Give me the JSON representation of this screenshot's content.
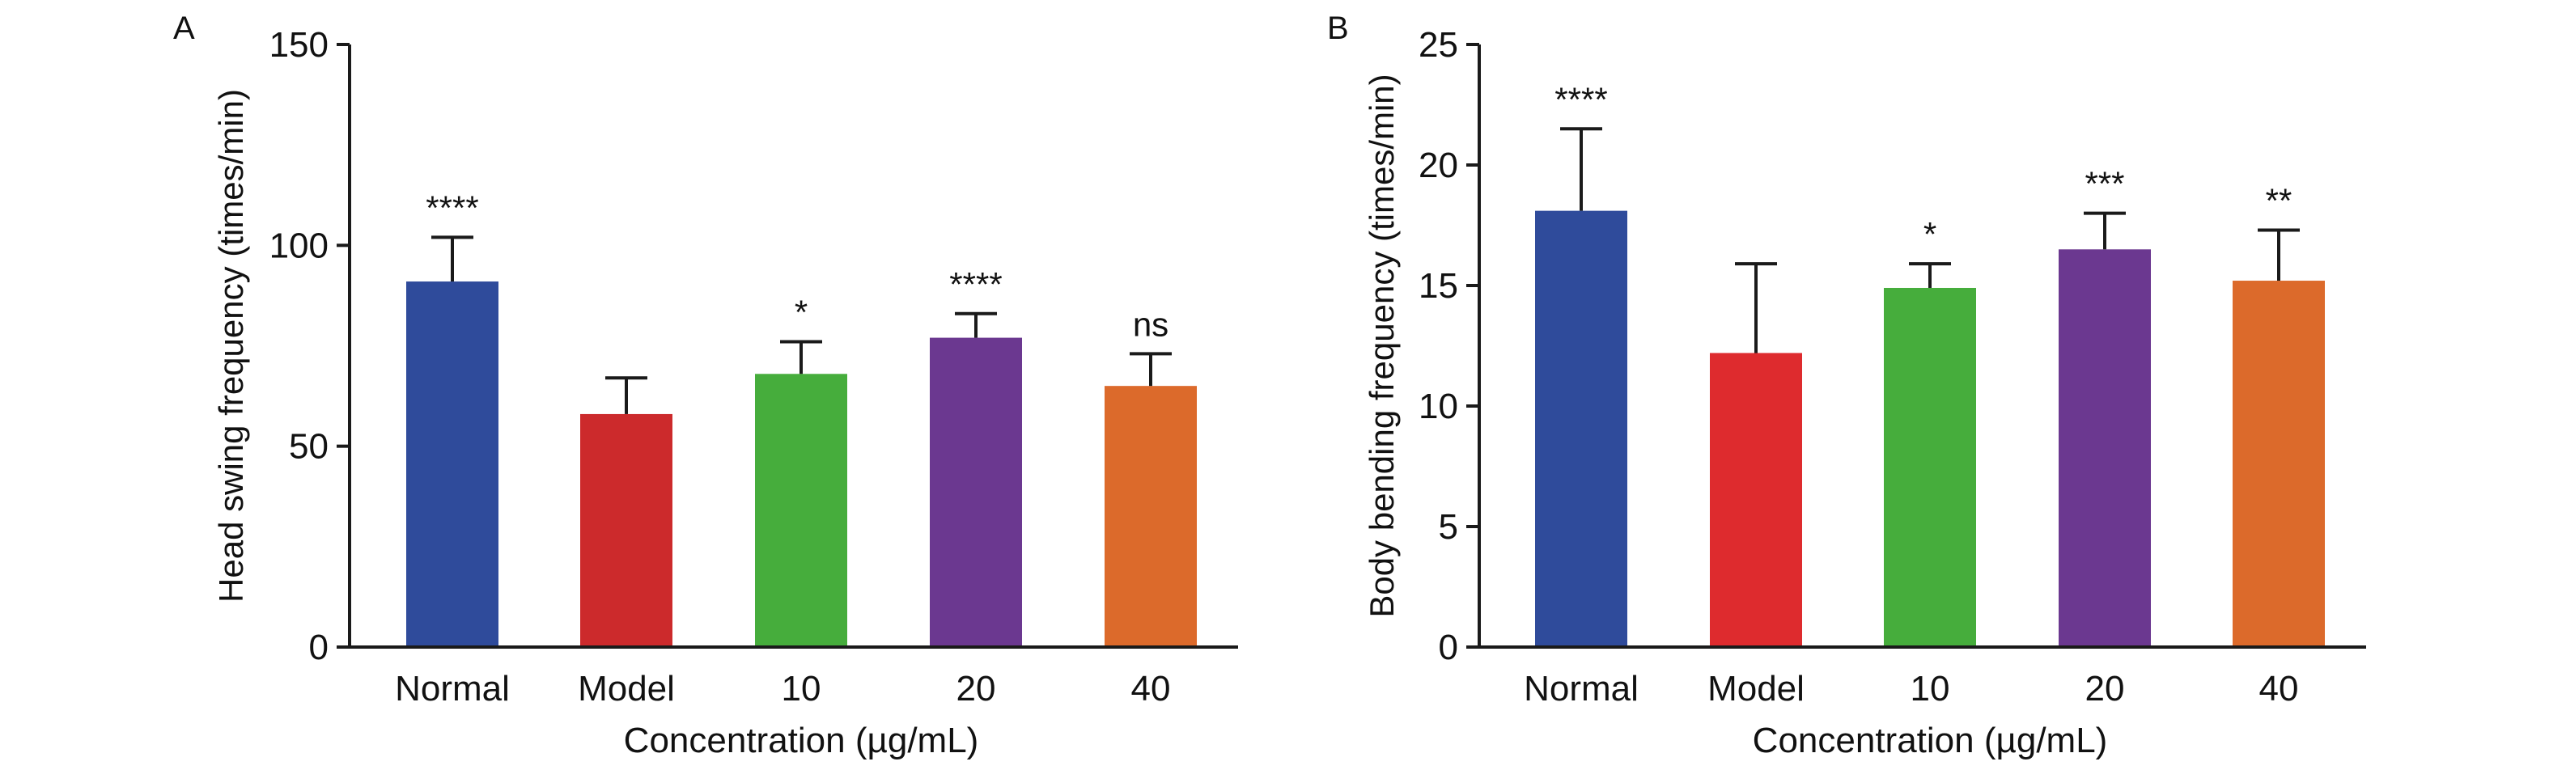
{
  "colors": {
    "normal": "#2f4b9b",
    "model": "#cc2a2c",
    "c10": "#46ad3c",
    "c20": "#6b3890",
    "c40": "#dc6a2b",
    "model_b": "#de2b2e",
    "axis": "#1a1a1a"
  },
  "chart_data": [
    {
      "panel_label": "A",
      "type": "bar",
      "title": "",
      "xlabel": "Concentration (µg/mL)",
      "ylabel": "Head swing frequency (times/min)",
      "categories": [
        "Normal",
        "Model",
        "10",
        "20",
        "40"
      ],
      "values": [
        91,
        58,
        68,
        77,
        65
      ],
      "error": [
        11,
        9,
        8,
        6,
        8
      ],
      "significance": [
        "****",
        "",
        "*",
        "****",
        "ns"
      ],
      "ylim": [
        0,
        150
      ],
      "yticks": [
        0,
        50,
        100,
        150
      ],
      "grid": false,
      "legend": "none"
    },
    {
      "panel_label": "B",
      "type": "bar",
      "title": "",
      "xlabel": "Concentration (µg/mL)",
      "ylabel": "Body bending frequency (times/min)",
      "categories": [
        "Normal",
        "Model",
        "10",
        "20",
        "40"
      ],
      "values": [
        18.1,
        12.2,
        14.9,
        16.5,
        15.2
      ],
      "error": [
        3.4,
        3.7,
        1.0,
        1.5,
        2.1
      ],
      "significance": [
        "****",
        "",
        "*",
        "***",
        "**"
      ],
      "ylim": [
        0,
        25
      ],
      "yticks": [
        0,
        5,
        10,
        15,
        20,
        25
      ],
      "grid": false,
      "legend": "none"
    }
  ]
}
